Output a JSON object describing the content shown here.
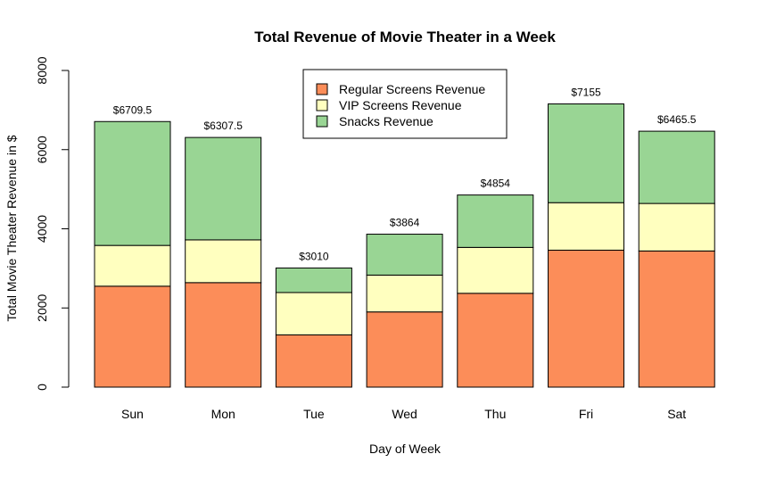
{
  "chart_data": {
    "type": "bar",
    "stacked": true,
    "title": "Total Revenue of Movie Theater in a Week",
    "xlabel": "Day of Week",
    "ylabel": "Total Movie Theater Revenue in $",
    "ylim": [
      0,
      8000
    ],
    "yticks": [
      0,
      2000,
      4000,
      6000,
      8000
    ],
    "grid": false,
    "legend_position": "top-center",
    "categories": [
      "Sun",
      "Mon",
      "Tue",
      "Wed",
      "Thu",
      "Fri",
      "Sat"
    ],
    "series": [
      {
        "name": "Regular Screens Revenue",
        "color": "#fc8d59",
        "values": [
          2550,
          2640,
          1320,
          1900,
          2370,
          3460,
          3440
        ]
      },
      {
        "name": "VIP Screens Revenue",
        "color": "#ffffbf",
        "values": [
          1030,
          1080,
          1070,
          930,
          1160,
          1200,
          1200
        ]
      },
      {
        "name": "Snacks Revenue",
        "color": "#99d594",
        "values": [
          3129.5,
          2587.5,
          620,
          1034,
          1324,
          2495,
          1825.5
        ]
      }
    ],
    "totals": [
      6709.5,
      6307.5,
      3010,
      3864,
      4854,
      7155,
      6465.5
    ],
    "total_labels": [
      "$6709.5",
      "$6307.5",
      "$3010",
      "$3864",
      "$4854",
      "$7155",
      "$6465.5"
    ]
  }
}
